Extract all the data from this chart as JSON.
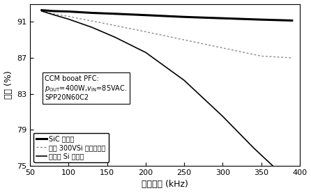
{
  "xlabel": "开关频率 (kHz)",
  "ylabel": "效率 (%)",
  "xlim": [
    50,
    400
  ],
  "ylim": [
    75,
    93
  ],
  "yticks": [
    75,
    79,
    83,
    87,
    91
  ],
  "xticks": [
    50,
    100,
    150,
    200,
    250,
    300,
    350,
    400
  ],
  "sic_x": [
    65,
    80,
    100,
    130,
    160,
    200,
    250,
    300,
    350,
    390
  ],
  "sic_y": [
    92.3,
    92.2,
    92.15,
    92.0,
    91.9,
    91.75,
    91.55,
    91.4,
    91.25,
    91.15
  ],
  "two300_x": [
    65,
    80,
    100,
    130,
    160,
    200,
    250,
    300,
    350,
    390
  ],
  "two300_y": [
    92.2,
    91.9,
    91.6,
    91.1,
    90.6,
    89.9,
    89.0,
    88.1,
    87.2,
    87.0
  ],
  "ultrafast_x": [
    65,
    80,
    100,
    130,
    160,
    200,
    250,
    300,
    340,
    365
  ],
  "ultrafast_y": [
    92.2,
    91.8,
    91.3,
    90.4,
    89.3,
    87.6,
    84.5,
    80.5,
    77.0,
    75.0
  ],
  "ann_text": "CCM booat PFC:\n$p_{\\mathrm{OUT}}$=400W,$v_{\\mathrm{IN}}$=85VAC.\nSPP20N60C2",
  "legend_labels": [
    "SiC 二极管",
    "两个 300VSi 二极管串联",
    "超快速 Si 二极管"
  ],
  "bg_color": "#ffffff",
  "sic_lw": 2.2,
  "two300_lw": 1.0,
  "ultrafast_lw": 1.2
}
